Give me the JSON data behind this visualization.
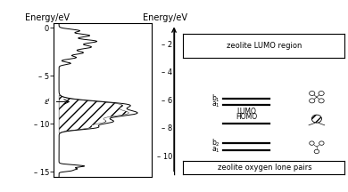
{
  "left_ylim": [
    -15.5,
    0.5
  ],
  "left_yticks": [
    0,
    -5,
    -10,
    -15
  ],
  "left_ytick_labels": [
    "0",
    "– 5",
    "– 10",
    "– 15"
  ],
  "fermi_level": -7.7,
  "fermi_label": "εⁱ",
  "left_title": "Energy/eV",
  "right_title": "Energy/eV",
  "right_ylim": [
    -11.5,
    -0.5
  ],
  "right_yticks": [
    -2,
    -4,
    -6,
    -8,
    -10
  ],
  "right_ytick_labels": [
    "– 2",
    "– 4",
    "– 6",
    "– 8",
    "– 10"
  ],
  "lumo_box_label": "zeolite LUMO region",
  "homo_box_label": "zeolite oxygen lone pairs",
  "b1_level": -5.9,
  "a1_lumo_level": -6.35,
  "homo_level": -7.7,
  "b2_level": -9.1,
  "a1_homo_level": -9.6,
  "background_color": "#ffffff",
  "line_color": "#000000"
}
